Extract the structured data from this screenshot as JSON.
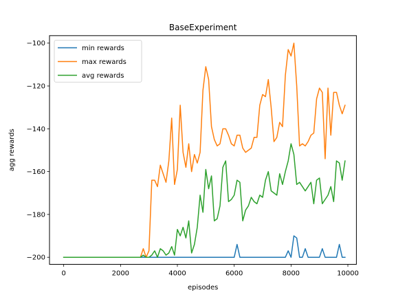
{
  "chart_data": {
    "type": "line",
    "title": "BaseExperiment",
    "xlabel": "episodes",
    "ylabel": "agg rewards",
    "xlim": [
      -500,
      10300
    ],
    "ylim": [
      -203.3,
      -96.5
    ],
    "xticks": [
      0,
      2000,
      4000,
      6000,
      8000,
      10000
    ],
    "yticks": [
      -200,
      -180,
      -160,
      -140,
      -120,
      -100
    ],
    "grid": false,
    "legend_position": "top-left",
    "x": [
      0,
      100,
      200,
      300,
      400,
      500,
      600,
      700,
      800,
      900,
      1000,
      1100,
      1200,
      1300,
      1400,
      1500,
      1600,
      1700,
      1800,
      1900,
      2000,
      2100,
      2200,
      2300,
      2400,
      2500,
      2600,
      2700,
      2800,
      2900,
      3000,
      3100,
      3200,
      3300,
      3400,
      3500,
      3600,
      3700,
      3800,
      3900,
      4000,
      4100,
      4200,
      4300,
      4400,
      4500,
      4600,
      4700,
      4800,
      4900,
      5000,
      5100,
      5200,
      5300,
      5400,
      5500,
      5600,
      5700,
      5800,
      5900,
      6000,
      6100,
      6200,
      6300,
      6400,
      6500,
      6600,
      6700,
      6800,
      6900,
      7000,
      7100,
      7200,
      7300,
      7400,
      7500,
      7600,
      7700,
      7800,
      7900,
      8000,
      8100,
      8200,
      8300,
      8400,
      8500,
      8600,
      8700,
      8800,
      8900,
      9000,
      9100,
      9200,
      9300,
      9400,
      9500,
      9600,
      9700,
      9800,
      9900
    ],
    "series": [
      {
        "name": "min rewards",
        "color": "#1f77b4",
        "values": [
          -200,
          -200,
          -200,
          -200,
          -200,
          -200,
          -200,
          -200,
          -200,
          -200,
          -200,
          -200,
          -200,
          -200,
          -200,
          -200,
          -200,
          -200,
          -200,
          -200,
          -200,
          -200,
          -200,
          -200,
          -200,
          -200,
          -200,
          -200,
          -200,
          -200,
          -200,
          -200,
          -200,
          -200,
          -200,
          -200,
          -200,
          -200,
          -200,
          -200,
          -200,
          -200,
          -200,
          -200,
          -200,
          -200,
          -200,
          -200,
          -200,
          -200,
          -200,
          -200,
          -200,
          -200,
          -200,
          -200,
          -200,
          -200,
          -200,
          -200,
          -200,
          -194,
          -200,
          -200,
          -200,
          -200,
          -200,
          -200,
          -200,
          -200,
          -200,
          -200,
          -200,
          -200,
          -200,
          -200,
          -200,
          -200,
          -200,
          -197,
          -200,
          -190,
          -191,
          -200,
          -200,
          -196,
          -200,
          -200,
          -200,
          -200,
          -200,
          -196,
          -200,
          -200,
          -200,
          -200,
          -200,
          -194,
          -200,
          -200
        ]
      },
      {
        "name": "max rewards",
        "color": "#ff7f0e",
        "values": [
          -200,
          -200,
          -200,
          -200,
          -200,
          -200,
          -200,
          -200,
          -200,
          -200,
          -200,
          -200,
          -200,
          -200,
          -200,
          -200,
          -200,
          -200,
          -200,
          -200,
          -200,
          -200,
          -200,
          -200,
          -200,
          -200,
          -200,
          -200,
          -196,
          -200,
          -197,
          -164,
          -164,
          -167,
          -157,
          -161,
          -165,
          -155,
          -135,
          -166,
          -159,
          -129,
          -151,
          -158,
          -147,
          -160,
          -152,
          -156,
          -151,
          -122,
          -111,
          -117,
          -139,
          -145,
          -148,
          -147,
          -140,
          -140,
          -143,
          -147,
          -148,
          -143,
          -143,
          -149,
          -151,
          -150,
          -149,
          -144,
          -144,
          -129,
          -124,
          -125,
          -117,
          -130,
          -146,
          -144,
          -137,
          -139,
          -115,
          -103,
          -106,
          -100,
          -120,
          -148,
          -147,
          -148,
          -146,
          -143,
          -142,
          -126,
          -121,
          -123,
          -154,
          -121,
          -143,
          -123,
          -123,
          -129,
          -133,
          -129
        ]
      },
      {
        "name": "avg rewards",
        "color": "#2ca02c",
        "values": [
          -200,
          -200,
          -200,
          -200,
          -200,
          -200,
          -200,
          -200,
          -200,
          -200,
          -200,
          -200,
          -200,
          -200,
          -200,
          -200,
          -200,
          -200,
          -200,
          -200,
          -200,
          -200,
          -200,
          -200,
          -200,
          -200,
          -200,
          -200,
          -199,
          -200,
          -200,
          -199,
          -197,
          -200,
          -196,
          -197,
          -199,
          -198,
          -195,
          -199,
          -187,
          -190,
          -186,
          -191,
          -183,
          -198,
          -194,
          -186,
          -171,
          -179,
          -159,
          -168,
          -162,
          -183,
          -182,
          -176,
          -158,
          -155,
          -174,
          -173,
          -171,
          -164,
          -165,
          -183,
          -178,
          -176,
          -172,
          -174,
          -175,
          -171,
          -172,
          -164,
          -160,
          -169,
          -170,
          -171,
          -161,
          -166,
          -160,
          -155,
          -147,
          -152,
          -166,
          -165,
          -167,
          -169,
          -167,
          -165,
          -175,
          -164,
          -163,
          -175,
          -173,
          -171,
          -167,
          -174,
          -155,
          -156,
          -164,
          -155
        ]
      }
    ]
  }
}
